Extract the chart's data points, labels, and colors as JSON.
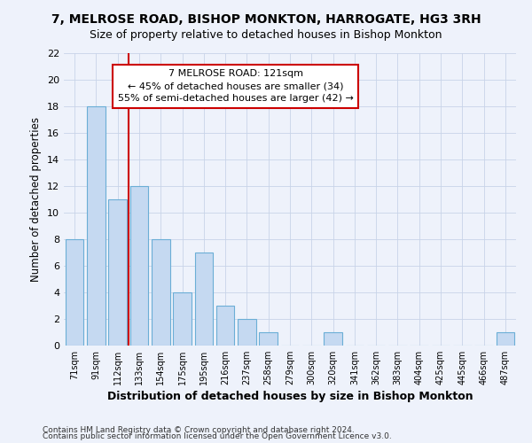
{
  "title1": "7, MELROSE ROAD, BISHOP MONKTON, HARROGATE, HG3 3RH",
  "title2": "Size of property relative to detached houses in Bishop Monkton",
  "xlabel": "Distribution of detached houses by size in Bishop Monkton",
  "ylabel": "Number of detached properties",
  "categories": [
    "71sqm",
    "91sqm",
    "112sqm",
    "133sqm",
    "154sqm",
    "175sqm",
    "195sqm",
    "216sqm",
    "237sqm",
    "258sqm",
    "279sqm",
    "300sqm",
    "320sqm",
    "341sqm",
    "362sqm",
    "383sqm",
    "404sqm",
    "425sqm",
    "445sqm",
    "466sqm",
    "487sqm"
  ],
  "values": [
    8,
    18,
    11,
    12,
    8,
    4,
    7,
    3,
    2,
    1,
    0,
    0,
    1,
    0,
    0,
    0,
    0,
    0,
    0,
    0,
    1
  ],
  "bar_color": "#c5d9f1",
  "bar_edge_color": "#6baed6",
  "bar_width": 0.85,
  "ylim": [
    0,
    22
  ],
  "yticks": [
    0,
    2,
    4,
    6,
    8,
    10,
    12,
    14,
    16,
    18,
    20,
    22
  ],
  "vline_color": "#cc0000",
  "annotation_line1": "7 MELROSE ROAD: 121sqm",
  "annotation_line2": "← 45% of detached houses are smaller (34)",
  "annotation_line3": "55% of semi-detached houses are larger (42) →",
  "annotation_box_color": "#ffffff",
  "annotation_border_color": "#cc0000",
  "footer1": "Contains HM Land Registry data © Crown copyright and database right 2024.",
  "footer2": "Contains public sector information licensed under the Open Government Licence v3.0.",
  "bg_color": "#eef2fb",
  "grid_color": "#c8d4e8",
  "title1_fontsize": 10,
  "title2_fontsize": 9
}
